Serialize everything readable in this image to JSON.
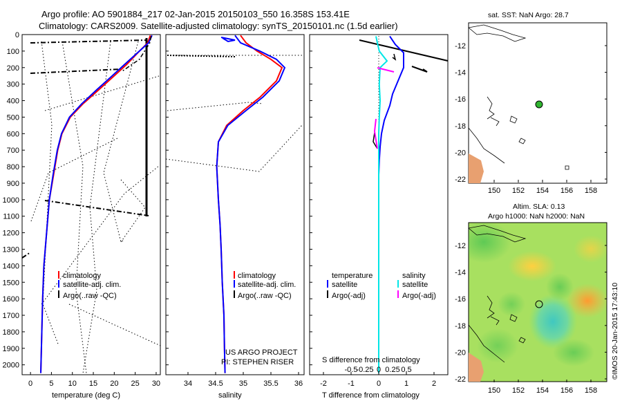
{
  "header": {
    "line1": "Argo profile: AO 5901884_217 02-Jan-2015 20150103_550 16.358S 153.41E",
    "line2": "Climatology: CARS2009. Satellite-adjusted climatology: synTS_20150101.nc (1.5d earlier)"
  },
  "colors": {
    "climatology": "#ff0000",
    "satellite": "#0000ff",
    "argo": "#000000",
    "sal_sat": "#00e6e6",
    "sal_argo": "#ff00ff",
    "land": "#e8a070"
  },
  "chart_data": [
    {
      "type": "line",
      "title": "",
      "xlabel": "temperature (deg C)",
      "ylabel": "",
      "xlim": [
        -2,
        31
      ],
      "ylim": [
        2060,
        0
      ],
      "xticks": [
        "0",
        "5",
        "10",
        "15",
        "20",
        "25",
        "30"
      ],
      "yticks": [
        "0",
        "100",
        "200",
        "300",
        "400",
        "500",
        "600",
        "700",
        "800",
        "900",
        "1000",
        "1100",
        "1200",
        "1300",
        "1400",
        "1500",
        "1600",
        "1700",
        "1800",
        "1900",
        "2000"
      ],
      "legend": [
        "climatology",
        "satellite-adj. clim.",
        "Argo(..raw -QC)"
      ],
      "series": [
        {
          "name": "climatology",
          "color": "#ff0000",
          "x": [
            28.6,
            28,
            26,
            23,
            20,
            16.5,
            12.5,
            9.5,
            7.5,
            6.5,
            5.5,
            4.5,
            4,
            3.2,
            2.9,
            2.7,
            2.55,
            2.45
          ],
          "y": [
            5,
            50,
            100,
            180,
            250,
            330,
            420,
            500,
            600,
            700,
            850,
            1000,
            1150,
            1400,
            1600,
            1800,
            1950,
            2050
          ]
        },
        {
          "name": "satellite-adj. clim.",
          "color": "#0000ff",
          "x": [
            29,
            28.2,
            26,
            22.5,
            19.5,
            16,
            12.2,
            9.3,
            7.4,
            6.4,
            5.4,
            4.5,
            4,
            3.2,
            2.9,
            2.7,
            2.55,
            2.45
          ],
          "y": [
            5,
            50,
            100,
            180,
            250,
            330,
            420,
            500,
            600,
            700,
            850,
            1000,
            1150,
            1400,
            1600,
            1800,
            1950,
            2050
          ]
        },
        {
          "name": "Argo raw",
          "color": "#000000",
          "x": [
            28.8,
            28.5,
            26,
            22
          ],
          "y": [
            10,
            50,
            150,
            220
          ]
        }
      ]
    },
    {
      "type": "line",
      "xlabel": "salinity",
      "xlim": [
        33.6,
        36.1
      ],
      "xticks": [
        "34",
        "34.5",
        "35",
        "35.5",
        "36"
      ],
      "legend": [
        "climatology",
        "satellite-adj. clim.",
        "Argo(..raw -QC)"
      ],
      "annotation": [
        "US ARGO PROJECT",
        "PI: STEPHEN RISER"
      ],
      "series": [
        {
          "name": "climatology",
          "color": "#ff0000",
          "x": [
            34.95,
            35.05,
            35.25,
            35.5,
            35.7,
            35.6,
            35.3,
            35.0,
            34.7,
            34.55,
            34.52,
            34.55,
            34.58,
            34.6,
            34.62,
            34.65,
            34.66,
            34.67
          ],
          "y": [
            5,
            50,
            100,
            150,
            200,
            280,
            380,
            460,
            550,
            650,
            800,
            1000,
            1150,
            1300,
            1500,
            1700,
            1900,
            2050
          ]
        },
        {
          "name": "satellite-adj. clim.",
          "color": "#0000ff",
          "x": [
            34.85,
            34.95,
            35.3,
            35.6,
            35.75,
            35.65,
            35.35,
            35.05,
            34.72,
            34.55,
            34.52,
            34.55,
            34.58,
            34.6,
            34.62,
            34.65,
            34.66,
            34.67
          ],
          "y": [
            5,
            50,
            100,
            150,
            200,
            280,
            380,
            460,
            550,
            650,
            800,
            1000,
            1150,
            1300,
            1500,
            1700,
            1900,
            2050
          ]
        }
      ]
    },
    {
      "type": "line",
      "xlabel": "T difference from climatology",
      "xlabel2": "S difference from climatology",
      "xlim": [
        -2.5,
        2.5
      ],
      "xticks": [
        "-2",
        "-1",
        "0",
        "1",
        "2"
      ],
      "xticks_s": [
        "-0.5",
        "-0.25",
        "0",
        "0.25",
        "0.5"
      ],
      "legend_titles": [
        "temperature",
        "salinity"
      ],
      "legend": [
        "satellite",
        "Argo(-adj)",
        "satellite",
        "Argo(-adj)"
      ]
    }
  ],
  "maps": {
    "sst_title": "sat. SST: NaN Argo: 28.7",
    "sla_title1": "Altim. SLA: 0.13",
    "sla_title2": "Argo h1000: NaN h2000: NaN",
    "lat_ticks": [
      "-12",
      "-14",
      "-16",
      "-18",
      "-20",
      "-22"
    ],
    "lon_ticks": [
      "150",
      "152",
      "154",
      "156",
      "158"
    ],
    "float_lon": 153.41,
    "float_lat": -16.358
  },
  "footer": "©IMOS 20-Jan-2015 17:43:10"
}
